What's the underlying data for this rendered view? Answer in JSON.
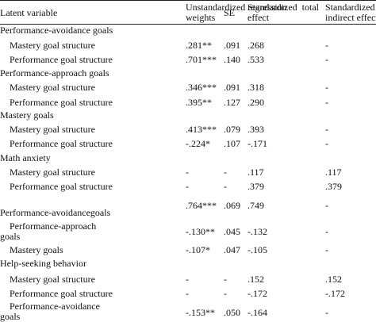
{
  "table": {
    "headers": {
      "latent_variable": "Latent variable",
      "unstandardized": "Unstandardized regression weights",
      "se": "SE",
      "standardized_total": "Standardized total effect",
      "standardized_indirect": "Standardized indirect effect"
    },
    "rows": [
      {
        "type": "group",
        "label": "Performance-avoidance goals"
      },
      {
        "type": "item",
        "label": "Mastery goal structure",
        "weight": ".281**",
        "se": ".091",
        "total": ".268",
        "indirect": "-"
      },
      {
        "type": "item",
        "label": "Performance goal structure",
        "weight": ".701***",
        "se": ".140",
        "total": ".533",
        "indirect": "-"
      },
      {
        "type": "group",
        "label": "Performance-approach goals"
      },
      {
        "type": "item",
        "label": "Mastery goal structure",
        "weight": ".346***",
        "se": ".091",
        "total": ".318",
        "indirect": "-"
      },
      {
        "type": "item",
        "label": "Performance goal structure",
        "weight": ".395**",
        "se": ".127",
        "total": ".290",
        "indirect": "-"
      },
      {
        "type": "group",
        "label": "Mastery goals"
      },
      {
        "type": "item",
        "label": "Mastery goal structure",
        "weight": ".413***",
        "se": ".079",
        "total": ".393",
        "indirect": "-"
      },
      {
        "type": "item",
        "label": "Performance goal structure",
        "weight": "-.224*",
        "se": ".107",
        "total": "-.171",
        "indirect": "-"
      },
      {
        "type": "group",
        "label": "Math anxiety"
      },
      {
        "type": "item",
        "label": "Mastery goal structure",
        "weight": "-",
        "se": "-",
        "total": ".117",
        "indirect": ".117"
      },
      {
        "type": "item",
        "label": "Performance goal structure",
        "weight": "-",
        "se": "-",
        "total": ".379",
        "indirect": ".379"
      },
      {
        "type": "group-values",
        "label": "Performance-avoidancegoals",
        "weight": ".764***",
        "se": ".069",
        "total": ".749",
        "indirect": "-"
      },
      {
        "type": "item",
        "label": "Performance-approach goals",
        "weight": "-.130**",
        "se": ".045",
        "total": "-.132",
        "indirect": "-"
      },
      {
        "type": "item",
        "label": "Mastery goals",
        "weight": "-.107*",
        "se": ".047",
        "total": "-.105",
        "indirect": "-"
      },
      {
        "type": "group",
        "label": "Help-seeking behavior"
      },
      {
        "type": "item",
        "label": "Mastery goal structure",
        "weight": "-",
        "se": "-",
        "total": ".152",
        "indirect": ".152"
      },
      {
        "type": "item",
        "label": "Performance goal structure",
        "weight": "-",
        "se": "-",
        "total": "-.172",
        "indirect": "-.172"
      },
      {
        "type": "item",
        "label": "Performance-avoidance goals",
        "weight": "-.153**",
        "se": ".050",
        "total": "-.164",
        "indirect": "-"
      }
    ]
  }
}
